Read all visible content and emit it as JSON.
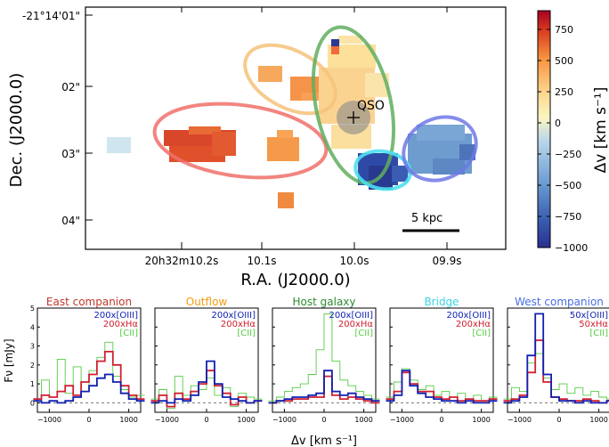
{
  "colors": {
    "red_ellipse": "#f0706a",
    "orange_ellipse": "#f5c27a",
    "green_ellipse": "#5fae5f",
    "cyan_ellipse": "#4de0ef",
    "blue_ellipse": "#6f78e8",
    "oiii": "#1020b0",
    "halpha": "#d02030",
    "cii": "#55cc44"
  },
  "map": {
    "xlabel": "R.A. (J2000.0)",
    "ylabel": "Dec. (J2000.0)",
    "xticks": [
      "20h32m10.2s",
      "10.1s",
      "10.0s",
      "09.9s"
    ],
    "yticks": [
      "-21°14'01\"",
      "02\"",
      "03\"",
      "04\""
    ],
    "qso_label": "QSO",
    "scalebar": "5 kpc",
    "colorbar_label": "Δv [km s⁻¹]",
    "colorbar_ticks": [
      "750",
      "500",
      "250",
      "0",
      "−250",
      "−500",
      "−750",
      "−1000"
    ]
  },
  "spectra_shared": {
    "xlabel": "Δv [km s⁻¹]",
    "ylabel": "Fν [mJy]",
    "xticks": [
      "−1000",
      "0",
      "1000"
    ],
    "yticks": [
      "0",
      "1",
      "2",
      "3",
      "4",
      "5"
    ]
  },
  "chart_data": [
    {
      "type": "heatmap",
      "description_units": "velocity offset map, pixels in R.A./Dec. offset units",
      "xlabel": "R.A. (J2000.0)",
      "ylabel": "Dec. (J2000.0)",
      "colorbar_range": [
        -1000,
        900
      ],
      "regions": [
        {
          "label": "East companion",
          "velocity_approx": 800
        },
        {
          "label": "Outflow",
          "velocity_approx": 400
        },
        {
          "label": "Host galaxy",
          "velocity_approx": 150
        },
        {
          "label": "Bridge",
          "velocity_approx": -950
        },
        {
          "label": "West companion",
          "velocity_approx": -600
        }
      ]
    },
    {
      "type": "line",
      "title": "East companion",
      "x": [
        -1300,
        -1100,
        -900,
        -700,
        -500,
        -300,
        -100,
        100,
        300,
        500,
        700,
        900,
        1100,
        1300
      ],
      "series": [
        {
          "name": "200x[OIII]",
          "values": [
            0.1,
            0.0,
            0.1,
            0.0,
            0.1,
            0.3,
            0.6,
            0.9,
            1.3,
            1.5,
            1.1,
            0.5,
            0.2,
            0.1
          ]
        },
        {
          "name": "200xHα",
          "values": [
            0.2,
            0.4,
            0.3,
            0.6,
            0.9,
            0.4,
            1.1,
            1.5,
            2.2,
            2.7,
            2.0,
            0.9,
            0.4,
            0.2
          ]
        },
        {
          "name": "[CII]",
          "values": [
            0.1,
            1.2,
            0.3,
            2.3,
            0.5,
            1.9,
            0.6,
            1.7,
            2.4,
            3.2,
            1.4,
            0.7,
            0.3,
            0.4
          ]
        }
      ]
    },
    {
      "type": "line",
      "title": "Outflow",
      "x": [
        -1300,
        -1100,
        -900,
        -700,
        -500,
        -300,
        -100,
        100,
        300,
        500,
        700,
        900,
        1100,
        1300
      ],
      "series": [
        {
          "name": "200x[OIII]",
          "values": [
            0.0,
            0.1,
            0.0,
            0.2,
            0.1,
            0.4,
            1.1,
            2.2,
            1.0,
            0.3,
            0.2,
            0.1,
            0.0,
            0.1
          ]
        },
        {
          "name": "200xHα",
          "values": [
            0.1,
            0.4,
            -0.2,
            0.5,
            0.2,
            0.6,
            1.0,
            1.7,
            0.9,
            0.5,
            -0.1,
            0.3,
            0.0,
            0.1
          ]
        },
        {
          "name": "[CII]",
          "values": [
            0.2,
            0.7,
            -0.3,
            1.4,
            0.4,
            0.9,
            0.7,
            1.3,
            0.4,
            0.8,
            -0.2,
            0.5,
            0.3,
            0.2
          ]
        }
      ]
    },
    {
      "type": "line",
      "title": "Host galaxy",
      "x": [
        -1300,
        -1100,
        -900,
        -700,
        -500,
        -300,
        -100,
        100,
        300,
        500,
        700,
        900,
        1100,
        1300
      ],
      "series": [
        {
          "name": "200x[OIII]",
          "values": [
            0.0,
            0.1,
            0.2,
            0.3,
            0.3,
            0.4,
            0.5,
            1.7,
            0.6,
            0.4,
            0.5,
            0.3,
            0.2,
            0.1
          ]
        },
        {
          "name": "200xHα",
          "values": [
            0.0,
            0.1,
            0.1,
            0.2,
            0.2,
            0.3,
            0.3,
            1.4,
            0.4,
            0.2,
            0.3,
            0.2,
            0.1,
            0.0
          ]
        },
        {
          "name": "[CII]",
          "values": [
            0.1,
            0.3,
            0.6,
            0.8,
            1.0,
            1.5,
            2.8,
            4.7,
            2.2,
            1.2,
            0.9,
            0.6,
            0.4,
            0.2
          ]
        }
      ]
    },
    {
      "type": "line",
      "title": "Bridge",
      "x": [
        -1300,
        -1100,
        -900,
        -700,
        -500,
        -300,
        -100,
        100,
        300,
        500,
        700,
        900,
        1100,
        1300
      ],
      "series": [
        {
          "name": "200x[OIII]",
          "values": [
            0.1,
            0.4,
            1.7,
            0.9,
            0.5,
            0.3,
            0.2,
            0.1,
            0.1,
            0.0,
            0.1,
            0.0,
            0.0,
            0.1
          ]
        },
        {
          "name": "200xHα",
          "values": [
            0.2,
            0.6,
            1.6,
            1.0,
            0.6,
            0.6,
            0.3,
            0.2,
            0.3,
            0.1,
            0.2,
            0.1,
            0.1,
            0.2
          ]
        },
        {
          "name": "[CII]",
          "values": [
            0.3,
            1.1,
            1.8,
            1.2,
            0.7,
            0.9,
            0.4,
            0.6,
            0.3,
            0.5,
            0.2,
            0.4,
            0.1,
            0.3
          ]
        }
      ]
    },
    {
      "type": "line",
      "title": "West companion",
      "x": [
        -1300,
        -1100,
        -900,
        -700,
        -500,
        -300,
        -100,
        100,
        300,
        500,
        700,
        900,
        1100,
        1300
      ],
      "series": [
        {
          "name": "50x[OIII]",
          "values": [
            0.0,
            0.1,
            0.3,
            2.5,
            4.7,
            1.5,
            0.3,
            0.1,
            0.1,
            0.0,
            0.1,
            0.0,
            0.0,
            0.1
          ]
        },
        {
          "name": "50xHα",
          "values": [
            0.1,
            0.2,
            0.4,
            1.6,
            3.3,
            1.1,
            0.3,
            0.2,
            0.1,
            0.1,
            0.2,
            0.1,
            0.0,
            0.1
          ]
        },
        {
          "name": "[CII]",
          "values": [
            0.2,
            0.8,
            0.6,
            2.1,
            2.6,
            1.3,
            0.7,
            1.0,
            0.5,
            0.8,
            0.4,
            0.6,
            0.3,
            0.2
          ]
        }
      ]
    }
  ]
}
